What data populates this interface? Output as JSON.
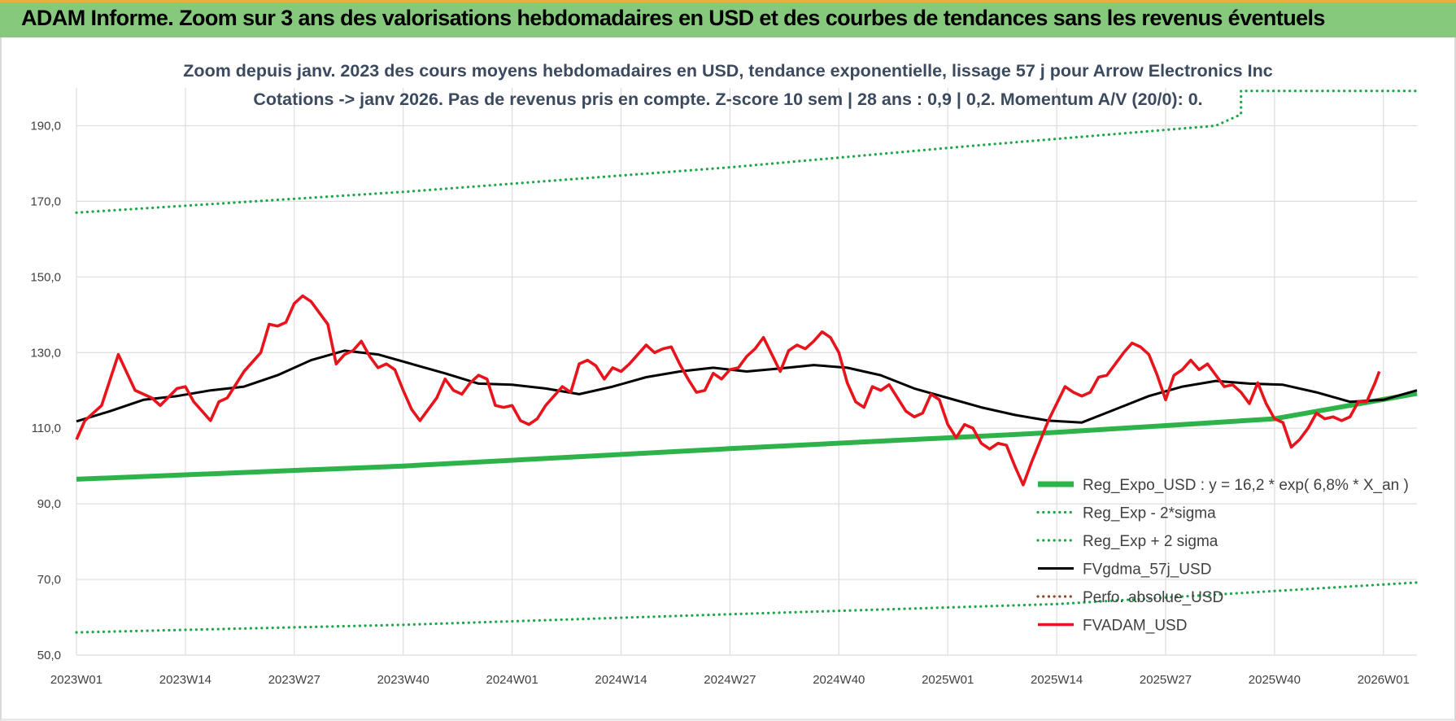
{
  "banner": {
    "title": "ADAM Informe. Zoom sur 3 ans des valorisations hebdomadaires en USD et des courbes de tendances sans les revenus éventuels"
  },
  "colors": {
    "banner_bg": "#86c97c",
    "reg_expo": "#2db34a",
    "reg_sigma": "#1fa64a",
    "fvgdma": "#000000",
    "perfo": "#8b4a2b",
    "fvadam": "#e8141c",
    "grid": "#dddddd"
  },
  "chart_data": {
    "type": "line",
    "title": "Zoom depuis janv. 2023 des cours moyens hebdomadaires en USD, tendance exponentielle, lissage 57 j pour Arrow Electronics Inc",
    "subtitle": "Cotations -> janv 2026. Pas de revenus pris en compte. Z-score 10 sem | 28 ans : 0,9 | 0,2. Momentum A/V (20/0): 0.",
    "xlabel": "",
    "ylabel": "",
    "ylim": [
      50,
      200
    ],
    "yticks": [
      "50,0",
      "70,0",
      "90,0",
      "110,0",
      "130,0",
      "150,0",
      "170,0",
      "190,0"
    ],
    "xticks": [
      "2023W01",
      "2023W14",
      "2023W27",
      "2023W40",
      "2024W01",
      "2024W14",
      "2024W27",
      "2024W40",
      "2025W01",
      "2025W14",
      "2025W27",
      "2025W40",
      "2026W01"
    ],
    "x_range_weeks": [
      0,
      160
    ],
    "grid": true,
    "legend_position": "bottom-right",
    "series": [
      {
        "name": "Reg_Expo_USD : y = 16,2 * exp( 6,8% *  X_an )",
        "style": "solid-thick",
        "key": "reg_expo",
        "points": [
          [
            0,
            96.5
          ],
          [
            39,
            100.0
          ],
          [
            78,
            104.6
          ],
          [
            117,
            108.9
          ],
          [
            143,
            112.5
          ],
          [
            160,
            119.2
          ]
        ]
      },
      {
        "name": "Reg_Exp - 2*sigma",
        "style": "dotted",
        "key": "reg_sigma",
        "points": [
          [
            0,
            56.0
          ],
          [
            39,
            58.0
          ],
          [
            78,
            60.8
          ],
          [
            117,
            63.5
          ],
          [
            160,
            69.2
          ]
        ]
      },
      {
        "name": "Reg_Exp + 2 sigma",
        "style": "dotted",
        "key": "reg_sigma",
        "points": [
          [
            0,
            167.0
          ],
          [
            39,
            172.5
          ],
          [
            78,
            179.0
          ],
          [
            106,
            184.5
          ],
          [
            136,
            190.0
          ],
          [
            139,
            193.0
          ],
          [
            139,
            199.2
          ],
          [
            160,
            199.2
          ]
        ]
      },
      {
        "name": "FVgdma_57j_USD",
        "style": "solid",
        "key": "fvgdma",
        "points": [
          [
            0,
            111.8
          ],
          [
            4,
            114.5
          ],
          [
            8,
            117.5
          ],
          [
            12,
            118.5
          ],
          [
            16,
            120.0
          ],
          [
            20,
            121.0
          ],
          [
            24,
            124.0
          ],
          [
            28,
            128.0
          ],
          [
            32,
            130.5
          ],
          [
            36,
            129.5
          ],
          [
            40,
            127.0
          ],
          [
            44,
            124.5
          ],
          [
            48,
            121.8
          ],
          [
            52,
            121.5
          ],
          [
            56,
            120.5
          ],
          [
            60,
            119.0
          ],
          [
            64,
            121.0
          ],
          [
            68,
            123.5
          ],
          [
            72,
            125.0
          ],
          [
            76,
            126.0
          ],
          [
            80,
            125.0
          ],
          [
            84,
            125.8
          ],
          [
            88,
            126.7
          ],
          [
            92,
            126.0
          ],
          [
            96,
            124.0
          ],
          [
            100,
            120.5
          ],
          [
            104,
            118.0
          ],
          [
            108,
            115.5
          ],
          [
            112,
            113.5
          ],
          [
            116,
            112.0
          ],
          [
            120,
            111.5
          ],
          [
            124,
            115.0
          ],
          [
            128,
            118.5
          ],
          [
            132,
            121.0
          ],
          [
            136,
            122.5
          ],
          [
            140,
            121.8
          ],
          [
            144,
            121.5
          ],
          [
            148,
            119.5
          ],
          [
            152,
            117.0
          ],
          [
            156,
            117.5
          ],
          [
            160,
            120.0
          ]
        ]
      },
      {
        "name": "Perfo. absolue_USD",
        "style": "dotted",
        "key": "perfo",
        "points": []
      },
      {
        "name": "FVADAM_USD",
        "style": "solid-thick",
        "key": "fvadam",
        "points": [
          [
            0,
            107.0
          ],
          [
            1,
            112.0
          ],
          [
            3,
            116.0
          ],
          [
            5,
            129.5
          ],
          [
            7,
            120.0
          ],
          [
            9,
            118.0
          ],
          [
            10,
            116.0
          ],
          [
            12,
            120.5
          ],
          [
            13,
            121.0
          ],
          [
            14,
            117.0
          ],
          [
            16,
            112.0
          ],
          [
            17,
            117.0
          ],
          [
            18,
            118.0
          ],
          [
            20,
            125.0
          ],
          [
            22,
            130.0
          ],
          [
            23,
            137.5
          ],
          [
            24,
            137.0
          ],
          [
            25,
            138.0
          ],
          [
            26,
            143.0
          ],
          [
            27,
            145.0
          ],
          [
            28,
            143.5
          ],
          [
            29,
            140.5
          ],
          [
            30,
            137.5
          ],
          [
            31,
            127.0
          ],
          [
            32,
            129.5
          ],
          [
            33,
            130.5
          ],
          [
            34,
            133.0
          ],
          [
            35,
            129.0
          ],
          [
            36,
            126.0
          ],
          [
            37,
            127.0
          ],
          [
            38,
            125.5
          ],
          [
            39,
            120.0
          ],
          [
            40,
            115.0
          ],
          [
            41,
            112.0
          ],
          [
            43,
            118.0
          ],
          [
            44,
            123.0
          ],
          [
            45,
            120.0
          ],
          [
            46,
            119.0
          ],
          [
            47,
            122.0
          ],
          [
            48,
            124.0
          ],
          [
            49,
            123.0
          ],
          [
            50,
            116.0
          ],
          [
            51,
            115.5
          ],
          [
            52,
            116.0
          ],
          [
            53,
            112.0
          ],
          [
            54,
            111.0
          ],
          [
            55,
            112.5
          ],
          [
            56,
            116.0
          ],
          [
            58,
            121.0
          ],
          [
            59,
            119.5
          ],
          [
            60,
            127.0
          ],
          [
            61,
            128.0
          ],
          [
            62,
            126.5
          ],
          [
            63,
            123.0
          ],
          [
            64,
            126.0
          ],
          [
            65,
            125.0
          ],
          [
            66,
            127.0
          ],
          [
            68,
            132.0
          ],
          [
            69,
            130.0
          ],
          [
            70,
            131.0
          ],
          [
            71,
            131.5
          ],
          [
            72,
            127.0
          ],
          [
            73,
            123.0
          ],
          [
            74,
            119.5
          ],
          [
            75,
            120.0
          ],
          [
            76,
            124.5
          ],
          [
            77,
            123.0
          ],
          [
            78,
            125.5
          ],
          [
            79,
            126.0
          ],
          [
            80,
            129.0
          ],
          [
            81,
            131.0
          ],
          [
            82,
            134.0
          ],
          [
            83,
            129.5
          ],
          [
            84,
            125.0
          ],
          [
            85,
            130.5
          ],
          [
            86,
            132.0
          ],
          [
            87,
            131.0
          ],
          [
            88,
            133.0
          ],
          [
            89,
            135.5
          ],
          [
            90,
            134.0
          ],
          [
            91,
            130.0
          ],
          [
            92,
            122.0
          ],
          [
            93,
            117.0
          ],
          [
            94,
            115.5
          ],
          [
            95,
            121.0
          ],
          [
            96,
            120.0
          ],
          [
            97,
            121.5
          ],
          [
            98,
            118.0
          ],
          [
            99,
            114.5
          ],
          [
            100,
            113.0
          ],
          [
            101,
            114.0
          ],
          [
            102,
            119.0
          ],
          [
            103,
            117.5
          ],
          [
            104,
            111.0
          ],
          [
            105,
            107.5
          ],
          [
            106,
            111.0
          ],
          [
            107,
            110.0
          ],
          [
            108,
            106.0
          ],
          [
            109,
            104.5
          ],
          [
            110,
            106.0
          ],
          [
            111,
            105.5
          ],
          [
            112,
            100.0
          ],
          [
            113,
            95.0
          ],
          [
            114,
            101.0
          ],
          [
            116,
            112.0
          ],
          [
            118,
            121.0
          ],
          [
            119,
            119.5
          ],
          [
            120,
            118.5
          ],
          [
            121,
            119.5
          ],
          [
            122,
            123.5
          ],
          [
            123,
            124.0
          ],
          [
            124,
            127.0
          ],
          [
            125,
            130.0
          ],
          [
            126,
            132.5
          ],
          [
            127,
            131.5
          ],
          [
            128,
            129.5
          ],
          [
            129,
            124.0
          ],
          [
            130,
            117.5
          ],
          [
            131,
            124.0
          ],
          [
            132,
            125.5
          ],
          [
            133,
            128.0
          ],
          [
            134,
            125.5
          ],
          [
            135,
            127.0
          ],
          [
            136,
            124.0
          ],
          [
            137,
            121.0
          ],
          [
            138,
            121.5
          ],
          [
            139,
            119.5
          ],
          [
            140,
            116.5
          ],
          [
            141,
            122.0
          ],
          [
            142,
            116.5
          ],
          [
            143,
            112.5
          ],
          [
            144,
            111.5
          ],
          [
            145,
            105.0
          ],
          [
            146,
            107.0
          ],
          [
            147,
            110.0
          ],
          [
            148,
            114.0
          ],
          [
            149,
            112.5
          ],
          [
            150,
            113.0
          ],
          [
            151,
            112.0
          ],
          [
            152,
            113.0
          ],
          [
            153,
            117.0
          ],
          [
            154,
            117.0
          ],
          [
            155,
            122.0
          ],
          [
            155.5,
            125.0
          ]
        ]
      }
    ]
  }
}
